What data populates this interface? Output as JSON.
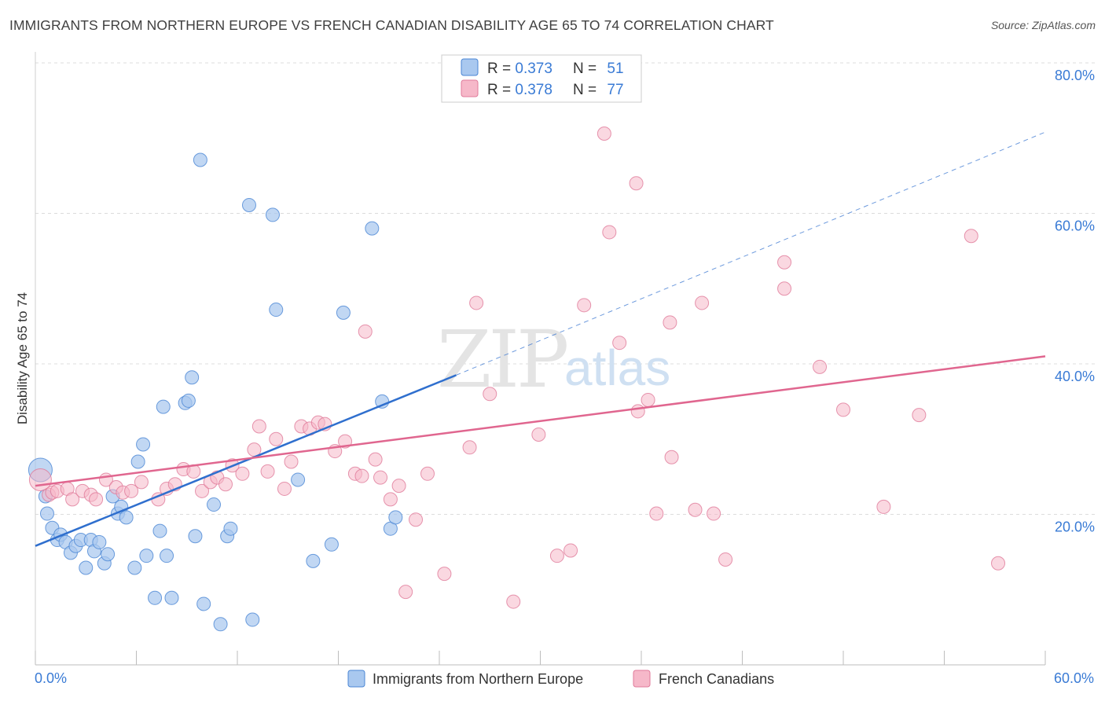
{
  "header": {
    "title": "IMMIGRANTS FROM NORTHERN EUROPE VS FRENCH CANADIAN DISABILITY AGE 65 TO 74 CORRELATION CHART",
    "source": "Source: ZipAtlas.com"
  },
  "watermark": {
    "zip": "ZIP",
    "atlas": "atlas"
  },
  "legend": {
    "rows": [
      {
        "r_label": "R = ",
        "r_value": "0.373",
        "n_label": "N = ",
        "n_value": "51",
        "color": "#a9c8ef"
      },
      {
        "r_label": "R = ",
        "r_value": "0.378",
        "n_label": "N = ",
        "n_value": "77",
        "color": "#f6b8c9"
      }
    ]
  },
  "bottom_legend": {
    "items": [
      {
        "label": "Immigrants from Northern Europe",
        "color": "#a9c8ef"
      },
      {
        "label": "French Canadians",
        "color": "#f6b8c9"
      }
    ]
  },
  "colors": {
    "blue_fill": "#a9c8ef",
    "blue_stroke": "#4a86d4",
    "blue_line": "#2f6fce",
    "pink_fill": "#f6b8c9",
    "pink_stroke": "#e07a9a",
    "pink_line": "#e0668f",
    "tick": "#3a7bd5"
  },
  "chart_data": {
    "type": "scatter",
    "title": "IMMIGRANTS FROM NORTHERN EUROPE VS FRENCH CANADIAN DISABILITY AGE 65 TO 74 CORRELATION CHART",
    "xlabel": "",
    "ylabel": "Disability Age 65 to 74",
    "xlim": [
      0,
      60
    ],
    "ylim": [
      0,
      80
    ],
    "x_tick_labels": [
      "0.0%",
      "60.0%"
    ],
    "y_ticks": [
      20,
      40,
      60,
      80
    ],
    "y_tick_labels": [
      "20.0%",
      "40.0%",
      "60.0%",
      "80.0%"
    ],
    "legend_position": "top-center",
    "series": [
      {
        "name": "Immigrants from Northern Europe",
        "R": 0.373,
        "N": 51,
        "trend": {
          "x0": 0,
          "y0": 15.8,
          "x1": 25,
          "y1": 38.5,
          "dashed_to_x": 60,
          "dashed_to_y": 70.8
        },
        "points": [
          [
            0.3,
            25.9
          ],
          [
            0.6,
            22.4
          ],
          [
            0.7,
            20.1
          ],
          [
            1.0,
            18.2
          ],
          [
            1.3,
            16.6
          ],
          [
            1.5,
            17.3
          ],
          [
            1.8,
            16.3
          ],
          [
            2.1,
            14.9
          ],
          [
            2.4,
            15.8
          ],
          [
            2.7,
            16.6
          ],
          [
            3.0,
            12.9
          ],
          [
            3.3,
            16.6
          ],
          [
            3.5,
            15.1
          ],
          [
            3.8,
            16.3
          ],
          [
            4.1,
            13.5
          ],
          [
            4.3,
            14.7
          ],
          [
            4.6,
            22.4
          ],
          [
            4.9,
            20.1
          ],
          [
            5.1,
            21.0
          ],
          [
            5.4,
            19.6
          ],
          [
            5.9,
            12.9
          ],
          [
            6.1,
            27.0
          ],
          [
            6.4,
            29.3
          ],
          [
            6.6,
            14.5
          ],
          [
            7.1,
            8.9
          ],
          [
            7.4,
            17.8
          ],
          [
            7.6,
            34.3
          ],
          [
            7.8,
            14.5
          ],
          [
            8.1,
            8.9
          ],
          [
            8.9,
            34.8
          ],
          [
            9.1,
            35.1
          ],
          [
            9.3,
            38.2
          ],
          [
            9.5,
            17.1
          ],
          [
            9.8,
            67.1
          ],
          [
            10.0,
            8.1
          ],
          [
            10.6,
            21.3
          ],
          [
            11.0,
            5.4
          ],
          [
            11.4,
            17.1
          ],
          [
            11.6,
            18.1
          ],
          [
            12.7,
            61.1
          ],
          [
            12.9,
            6.0
          ],
          [
            14.1,
            59.8
          ],
          [
            14.3,
            47.2
          ],
          [
            15.6,
            24.6
          ],
          [
            16.5,
            13.8
          ],
          [
            17.6,
            16.0
          ],
          [
            18.3,
            46.8
          ],
          [
            20.0,
            58.0
          ],
          [
            20.6,
            35.0
          ],
          [
            21.1,
            18.1
          ],
          [
            21.4,
            19.6
          ]
        ]
      },
      {
        "name": "French Canadians",
        "R": 0.378,
        "N": 77,
        "trend": {
          "x0": 0,
          "y0": 23.8,
          "x1": 60,
          "y1": 41.0
        },
        "points": [
          [
            0.3,
            24.6
          ],
          [
            0.8,
            22.6
          ],
          [
            1.0,
            22.9
          ],
          [
            1.3,
            23.1
          ],
          [
            1.9,
            23.4
          ],
          [
            2.2,
            22.0
          ],
          [
            2.8,
            23.1
          ],
          [
            3.3,
            22.6
          ],
          [
            3.6,
            22.0
          ],
          [
            4.2,
            24.6
          ],
          [
            4.8,
            23.6
          ],
          [
            5.2,
            22.9
          ],
          [
            5.7,
            23.1
          ],
          [
            6.3,
            24.3
          ],
          [
            7.3,
            22.0
          ],
          [
            7.8,
            23.4
          ],
          [
            8.3,
            24.0
          ],
          [
            8.8,
            26.0
          ],
          [
            9.4,
            25.7
          ],
          [
            9.9,
            23.1
          ],
          [
            10.4,
            24.3
          ],
          [
            10.8,
            24.9
          ],
          [
            11.3,
            24.0
          ],
          [
            11.7,
            26.5
          ],
          [
            12.3,
            25.4
          ],
          [
            13.0,
            28.6
          ],
          [
            13.3,
            31.7
          ],
          [
            13.8,
            25.7
          ],
          [
            14.3,
            30.0
          ],
          [
            14.8,
            23.4
          ],
          [
            15.2,
            27.0
          ],
          [
            15.8,
            31.7
          ],
          [
            16.3,
            31.4
          ],
          [
            16.8,
            32.2
          ],
          [
            17.2,
            32.0
          ],
          [
            17.8,
            28.4
          ],
          [
            18.4,
            29.7
          ],
          [
            19.0,
            25.4
          ],
          [
            19.4,
            25.1
          ],
          [
            19.6,
            44.3
          ],
          [
            20.2,
            27.3
          ],
          [
            20.5,
            24.9
          ],
          [
            21.1,
            22.0
          ],
          [
            21.6,
            23.8
          ],
          [
            22.0,
            9.7
          ],
          [
            22.6,
            19.3
          ],
          [
            23.3,
            25.4
          ],
          [
            24.3,
            12.1
          ],
          [
            25.8,
            28.9
          ],
          [
            26.2,
            48.1
          ],
          [
            27.0,
            36.0
          ],
          [
            28.4,
            8.4
          ],
          [
            29.9,
            30.6
          ],
          [
            31.0,
            14.5
          ],
          [
            31.8,
            15.2
          ],
          [
            32.6,
            47.8
          ],
          [
            33.8,
            70.6
          ],
          [
            34.1,
            57.5
          ],
          [
            34.7,
            42.8
          ],
          [
            35.7,
            64.0
          ],
          [
            35.8,
            33.7
          ],
          [
            36.4,
            35.2
          ],
          [
            36.9,
            20.1
          ],
          [
            37.7,
            45.5
          ],
          [
            37.8,
            27.6
          ],
          [
            39.2,
            20.6
          ],
          [
            39.6,
            48.1
          ],
          [
            40.3,
            20.1
          ],
          [
            41.0,
            14.0
          ],
          [
            44.5,
            50.0
          ],
          [
            44.5,
            53.5
          ],
          [
            46.6,
            39.6
          ],
          [
            48.0,
            33.9
          ],
          [
            50.4,
            21.0
          ],
          [
            52.5,
            33.2
          ],
          [
            55.6,
            57.0
          ],
          [
            57.2,
            13.5
          ]
        ]
      }
    ]
  }
}
